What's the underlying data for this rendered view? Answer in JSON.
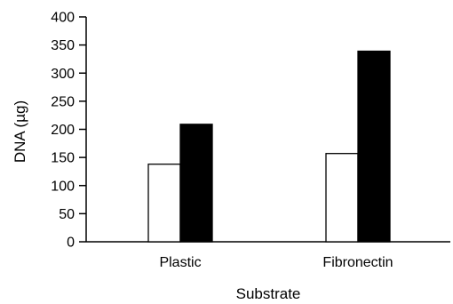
{
  "chart_data": {
    "type": "bar",
    "xlabel": "Substrate",
    "ylabel": "DNA (µg)",
    "ylim": [
      0,
      400
    ],
    "yticks": [
      0,
      50,
      100,
      150,
      200,
      250,
      300,
      350,
      400
    ],
    "categories": [
      "Plastic",
      "Fibronectin"
    ],
    "series": [
      {
        "fill": "#ffffff",
        "values": [
          138,
          157
        ]
      },
      {
        "fill": "#000000",
        "values": [
          209,
          339
        ]
      }
    ],
    "legend": "none",
    "grid": false
  }
}
